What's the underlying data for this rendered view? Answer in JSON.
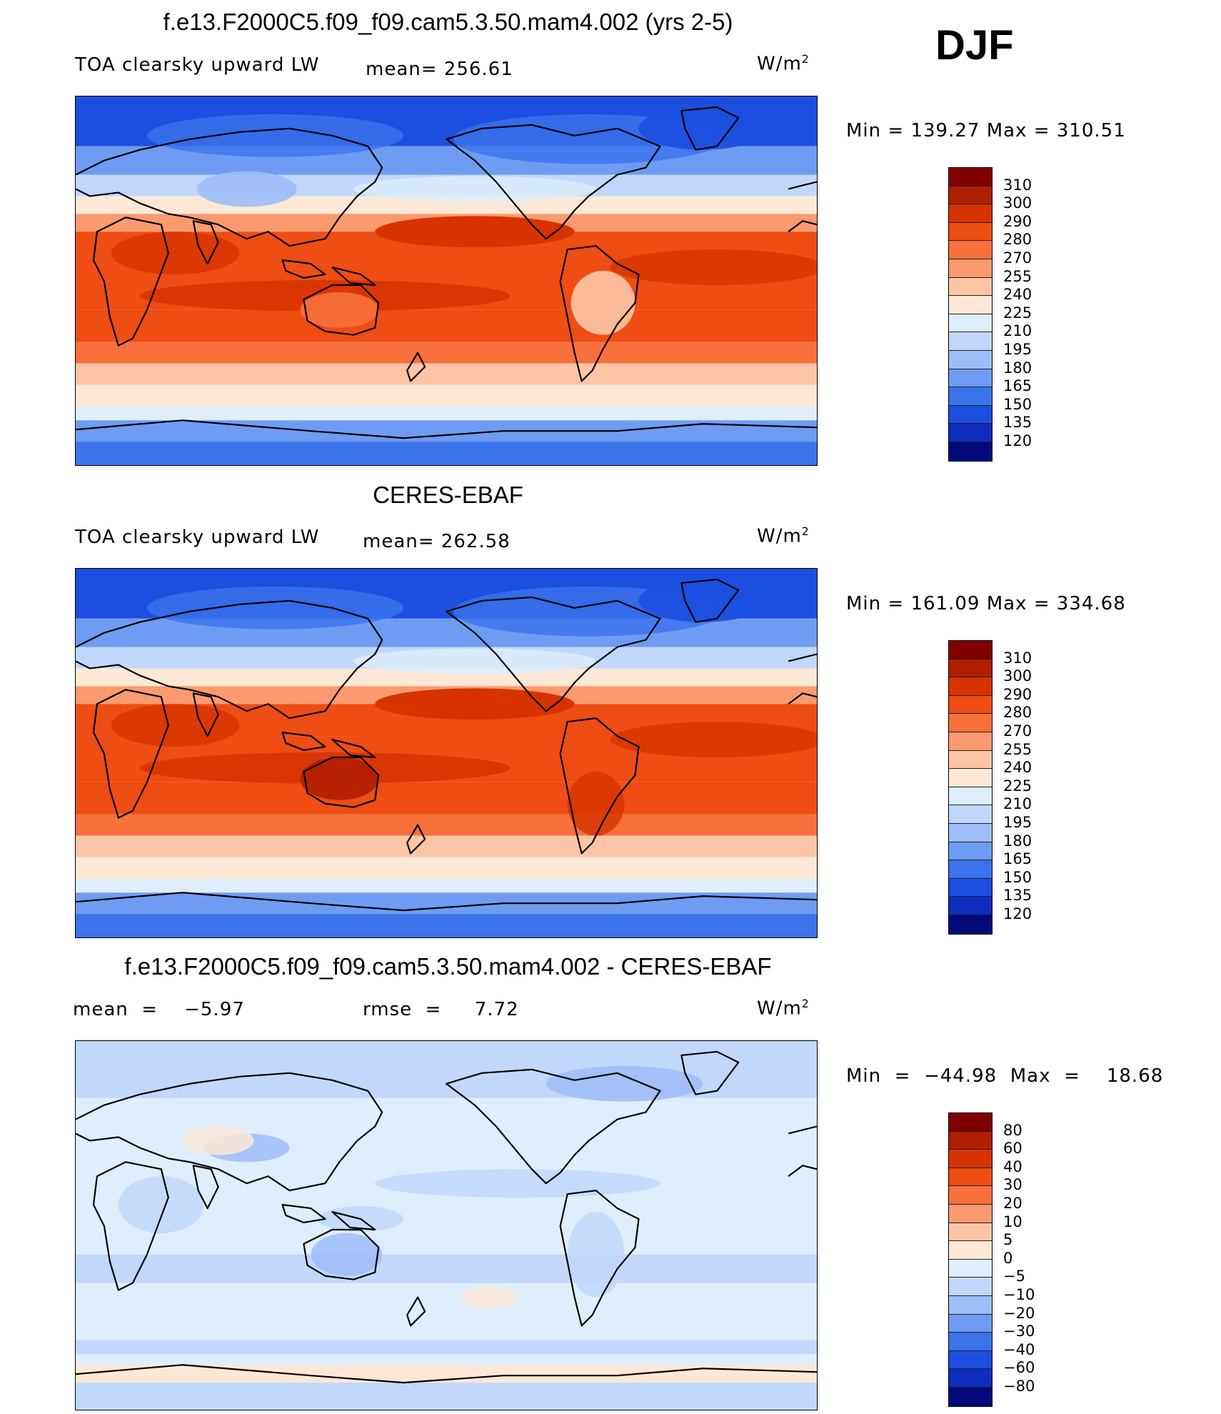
{
  "season": "DJF",
  "units": "W/m",
  "units_exp": "2",
  "panels": [
    {
      "title": "f.e13.F2000C5.f09_f09.cam5.3.50.mam4.002 (yrs 2-5)",
      "variable": "TOA clearsky upward LW",
      "stat1": "mean=  256.61",
      "stat2": "",
      "minmax": "Min  =  139.27  Max  =  310.51",
      "palette": "absolute"
    },
    {
      "title": "CERES-EBAF",
      "variable": "TOA clearsky upward LW",
      "stat1": "mean=  262.58",
      "stat2": "",
      "minmax": "Min  =  161.09  Max  =  334.68",
      "palette": "absolute"
    },
    {
      "title": "f.e13.F2000C5.f09_f09.cam5.3.50.mam4.002 - CERES-EBAF",
      "variable": "",
      "stat1": "mean  =    −5.97",
      "stat2": "rmse  =     7.72",
      "minmax": "Min  =  −44.98  Max  =    18.68",
      "palette": "difference"
    }
  ],
  "colorbars": {
    "absolute": {
      "levels": [
        "310",
        "300",
        "290",
        "280",
        "270",
        "255",
        "240",
        "225",
        "210",
        "195",
        "180",
        "165",
        "150",
        "135",
        "120"
      ],
      "colors": [
        "#800000",
        "#b01e00",
        "#d63300",
        "#ee4d14",
        "#f8703c",
        "#fa9a6e",
        "#fcc6a6",
        "#fde8d6",
        "#dfeefc",
        "#c0d8fb",
        "#9dbdf7",
        "#6f9cf2",
        "#3b73ec",
        "#1c4fe0",
        "#0e2dbf",
        "#020a7a"
      ]
    },
    "difference": {
      "levels": [
        "80",
        "60",
        "40",
        "30",
        "20",
        "10",
        "5",
        "0",
        "−5",
        "−10",
        "−20",
        "−30",
        "−40",
        "−60",
        "−80"
      ],
      "colors": [
        "#800000",
        "#b01e00",
        "#d63300",
        "#ee4d14",
        "#f8703c",
        "#fa9a6e",
        "#fcc6a6",
        "#fde8d6",
        "#dfeefc",
        "#c0d8fb",
        "#9dbdf7",
        "#6f9cf2",
        "#3b73ec",
        "#1c4fe0",
        "#0e2dbf",
        "#020a7a"
      ]
    }
  }
}
